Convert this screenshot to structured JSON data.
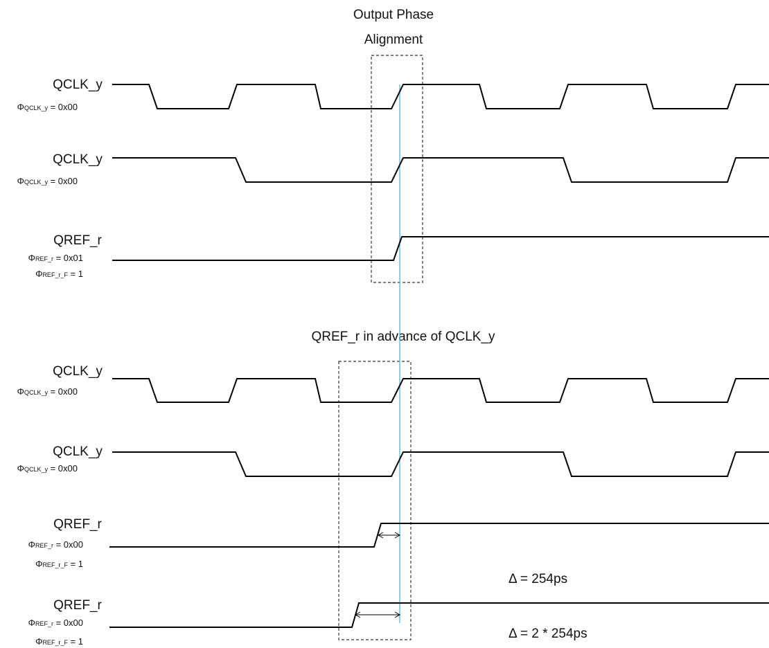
{
  "title_top": [
    "Output Phase",
    "Alignment"
  ],
  "title_mid": "QREF_r in advance of QCLK_y",
  "signals": [
    {
      "name": "QCLK_y",
      "phi_sub": "QCLK_y",
      "phi_val": "0x00",
      "extra": null
    },
    {
      "name": "QCLK_y",
      "phi_sub": "QCLK_y",
      "phi_val": "0x00",
      "extra": null
    },
    {
      "name": "QREF_r",
      "phi_sub": "REF_r",
      "phi_val": "0x01",
      "extra": {
        "sub": "REF_r_F",
        "val": "1"
      }
    },
    {
      "name": "QCLK_y",
      "phi_sub": "QCLK_y",
      "phi_val": "0x00",
      "extra": null
    },
    {
      "name": "QCLK_y",
      "phi_sub": "QCLK_y",
      "phi_val": "0x00",
      "extra": null
    },
    {
      "name": "QREF_r",
      "phi_sub": "REF_r",
      "phi_val": "0x00",
      "extra": {
        "sub": "REF_r_F",
        "val": "1"
      }
    },
    {
      "name": "QREF_r",
      "phi_sub": "REF_r",
      "phi_val": "0x00",
      "extra": {
        "sub": "REF_r_F",
        "val": "1"
      }
    }
  ],
  "annotations": [
    "Δ = 254ps",
    "Δ = 2 * 254ps"
  ],
  "colors": {
    "trace": "#000000",
    "alignment_line": "#5bbde0",
    "box": "#333333"
  }
}
